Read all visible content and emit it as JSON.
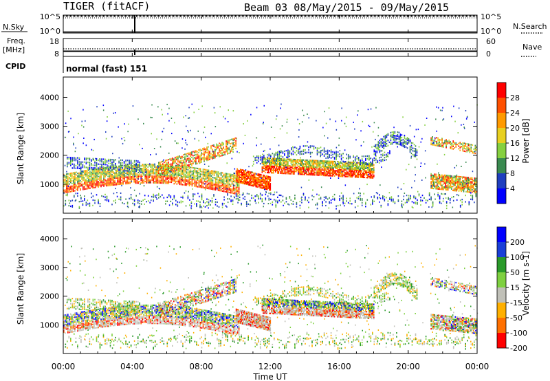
{
  "header": {
    "radar_title": "TIGER (fitACF)",
    "beam_date": "Beam 03 08/May/2015 - 09/May/2015"
  },
  "sky_panel": {
    "left_label": "N.Sky",
    "right_label": "N.Search",
    "left_ticks": [
      "10^5",
      "10^0"
    ],
    "right_ticks": [
      "10^5",
      "10^0"
    ]
  },
  "freq_panel": {
    "left_label_top": "Freq.",
    "left_label_bottom": "[MHz]",
    "right_label": "Nave",
    "left_ticks": [
      "18",
      "8"
    ],
    "right_ticks": [
      "60",
      "0"
    ]
  },
  "cpid": {
    "label": "CPID",
    "value": "normal (fast) 151"
  },
  "chart_data": [
    {
      "type": "heatmap",
      "name": "power",
      "ylabel": "Slant Range [km]",
      "ylim": [
        0,
        4700
      ],
      "yticks": [
        "1000",
        "2000",
        "3000",
        "4000"
      ],
      "colorbar_label": "Power [dB]",
      "colorbar_ticks": [
        "4",
        "8",
        "12",
        "16",
        "20",
        "24",
        "28"
      ],
      "colors": [
        "#0000ff",
        "#1f3fbf",
        "#3a8a50",
        "#86d040",
        "#e8d020",
        "#ff9a00",
        "#ff5000",
        "#ff0000"
      ]
    },
    {
      "type": "heatmap",
      "name": "velocity",
      "ylabel": "Slant Range [km]",
      "ylim": [
        0,
        4700
      ],
      "yticks": [
        "1000",
        "2000",
        "3000",
        "4000"
      ],
      "colorbar_label": "Velocity [m s-1]",
      "colorbar_ticks": [
        "200",
        "100",
        "50",
        "15",
        "-15",
        "-50",
        "-100",
        "-200"
      ],
      "colors": [
        "#0000ff",
        "#1a3fd8",
        "#2a9a2a",
        "#7ed040",
        "#c0c0b8",
        "#ffb000",
        "#ff7000",
        "#ff0000"
      ]
    }
  ],
  "time_axis": {
    "ticks": [
      "00:00",
      "04:00",
      "08:00",
      "12:00",
      "16:00",
      "20:00",
      "00:00"
    ],
    "xlabel": "Time UT",
    "hours": [
      0,
      24
    ]
  }
}
